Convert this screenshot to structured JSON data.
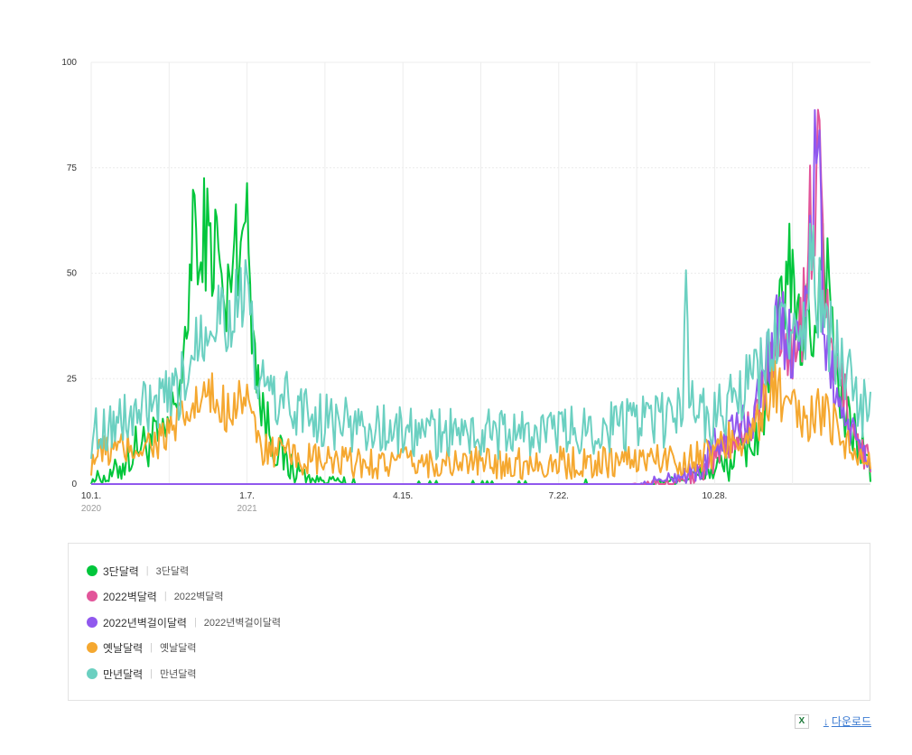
{
  "chart_data": {
    "type": "line",
    "x_ticks": [
      {
        "label": "10.1.",
        "sub": "2020",
        "day": 0
      },
      {
        "label": "1.7.",
        "sub": "2021",
        "day": 98
      },
      {
        "label": "4.15.",
        "sub": "",
        "day": 196
      },
      {
        "label": "7.22.",
        "sub": "",
        "day": 294
      },
      {
        "label": "10.28.",
        "sub": "",
        "day": 392
      }
    ],
    "x_range": [
      0,
      490
    ],
    "ylim": [
      0,
      100
    ],
    "y_ticks": [
      0,
      25,
      50,
      75,
      100
    ],
    "grid": true,
    "series": [
      {
        "name": "3단달력",
        "alias": "3단달력",
        "color": "#00c63b",
        "keys": [
          [
            0,
            0
          ],
          [
            5,
            2
          ],
          [
            10,
            1
          ],
          [
            15,
            3
          ],
          [
            20,
            5
          ],
          [
            25,
            7
          ],
          [
            30,
            10
          ],
          [
            35,
            9
          ],
          [
            40,
            11
          ],
          [
            45,
            10
          ],
          [
            50,
            15
          ],
          [
            55,
            24
          ],
          [
            60,
            30
          ],
          [
            63,
            60
          ],
          [
            65,
            68
          ],
          [
            68,
            40
          ],
          [
            70,
            63
          ],
          [
            73,
            58
          ],
          [
            76,
            55
          ],
          [
            80,
            58
          ],
          [
            82,
            45
          ],
          [
            85,
            38
          ],
          [
            88,
            55
          ],
          [
            90,
            58
          ],
          [
            93,
            60
          ],
          [
            95,
            62
          ],
          [
            96,
            50
          ],
          [
            98,
            74
          ],
          [
            100,
            45
          ],
          [
            103,
            35
          ],
          [
            106,
            20
          ],
          [
            110,
            15
          ],
          [
            115,
            10
          ],
          [
            120,
            6
          ],
          [
            125,
            4
          ],
          [
            130,
            3
          ],
          [
            135,
            2
          ],
          [
            140,
            1
          ],
          [
            150,
            1
          ],
          [
            160,
            0.5
          ],
          [
            180,
            0.3
          ],
          [
            200,
            0.2
          ],
          [
            230,
            0.3
          ],
          [
            260,
            0.2
          ],
          [
            290,
            0.3
          ],
          [
            320,
            0.4
          ],
          [
            350,
            0.5
          ],
          [
            370,
            1
          ],
          [
            380,
            2
          ],
          [
            390,
            3
          ],
          [
            400,
            5
          ],
          [
            410,
            8
          ],
          [
            420,
            12
          ],
          [
            425,
            20
          ],
          [
            430,
            30
          ],
          [
            435,
            45
          ],
          [
            438,
            55
          ],
          [
            442,
            40
          ],
          [
            446,
            35
          ],
          [
            450,
            40
          ],
          [
            454,
            35
          ],
          [
            458,
            50
          ],
          [
            460,
            58
          ],
          [
            463,
            50
          ],
          [
            466,
            40
          ],
          [
            470,
            20
          ],
          [
            475,
            15
          ],
          [
            480,
            12
          ],
          [
            485,
            8
          ],
          [
            490,
            3
          ]
        ],
        "noise": 4
      },
      {
        "name": "2022벽달력",
        "alias": "2022벽달력",
        "color": "#e2559a",
        "keys": [
          [
            0,
            0
          ],
          [
            340,
            0
          ],
          [
            365,
            0.5
          ],
          [
            380,
            2
          ],
          [
            390,
            4
          ],
          [
            395,
            8
          ],
          [
            400,
            10
          ],
          [
            410,
            12
          ],
          [
            415,
            15
          ],
          [
            420,
            20
          ],
          [
            425,
            25
          ],
          [
            430,
            30
          ],
          [
            435,
            40
          ],
          [
            440,
            30
          ],
          [
            445,
            35
          ],
          [
            450,
            45
          ],
          [
            452,
            62
          ],
          [
            455,
            50
          ],
          [
            458,
            100
          ],
          [
            460,
            60
          ],
          [
            462,
            40
          ],
          [
            465,
            30
          ],
          [
            470,
            25
          ],
          [
            475,
            20
          ],
          [
            480,
            12
          ],
          [
            485,
            8
          ],
          [
            490,
            5
          ]
        ],
        "noise": 3
      },
      {
        "name": "2022년벽걸이달력",
        "alias": "2022년벽걸이달력",
        "color": "#9058ee",
        "keys": [
          [
            0,
            0
          ],
          [
            345,
            0
          ],
          [
            360,
            1
          ],
          [
            370,
            2
          ],
          [
            380,
            3
          ],
          [
            385,
            4
          ],
          [
            390,
            8
          ],
          [
            395,
            10
          ],
          [
            400,
            12
          ],
          [
            410,
            14
          ],
          [
            415,
            16
          ],
          [
            420,
            20
          ],
          [
            425,
            30
          ],
          [
            430,
            35
          ],
          [
            435,
            38
          ],
          [
            440,
            32
          ],
          [
            445,
            38
          ],
          [
            450,
            45
          ],
          [
            452,
            55
          ],
          [
            456,
            85
          ],
          [
            458,
            70
          ],
          [
            460,
            40
          ],
          [
            463,
            30
          ],
          [
            466,
            25
          ],
          [
            470,
            20
          ],
          [
            475,
            15
          ],
          [
            480,
            10
          ],
          [
            485,
            8
          ],
          [
            490,
            6
          ]
        ],
        "noise": 3
      },
      {
        "name": "옛날달력",
        "alias": "옛날달력",
        "color": "#f5a830",
        "keys": [
          [
            0,
            6
          ],
          [
            10,
            8
          ],
          [
            20,
            8
          ],
          [
            30,
            9
          ],
          [
            40,
            10
          ],
          [
            50,
            12
          ],
          [
            55,
            14
          ],
          [
            60,
            16
          ],
          [
            65,
            18
          ],
          [
            70,
            20
          ],
          [
            75,
            20
          ],
          [
            80,
            19
          ],
          [
            85,
            18
          ],
          [
            90,
            20
          ],
          [
            95,
            22
          ],
          [
            100,
            20
          ],
          [
            102,
            12
          ],
          [
            105,
            10
          ],
          [
            110,
            8
          ],
          [
            120,
            7
          ],
          [
            130,
            6
          ],
          [
            150,
            5
          ],
          [
            170,
            5
          ],
          [
            200,
            5
          ],
          [
            230,
            5
          ],
          [
            260,
            5
          ],
          [
            290,
            5
          ],
          [
            320,
            5
          ],
          [
            340,
            6
          ],
          [
            360,
            6
          ],
          [
            375,
            6
          ],
          [
            385,
            7
          ],
          [
            395,
            8
          ],
          [
            400,
            10
          ],
          [
            410,
            12
          ],
          [
            420,
            14
          ],
          [
            425,
            20
          ],
          [
            430,
            25
          ],
          [
            435,
            18
          ],
          [
            440,
            17
          ],
          [
            445,
            16
          ],
          [
            450,
            15
          ],
          [
            455,
            17
          ],
          [
            460,
            16
          ],
          [
            465,
            15
          ],
          [
            470,
            14
          ],
          [
            475,
            10
          ],
          [
            480,
            8
          ],
          [
            485,
            6
          ],
          [
            490,
            4
          ]
        ],
        "noise": 3
      },
      {
        "name": "만년달력",
        "alias": "만년달력",
        "color": "#6bd0c1",
        "keys": [
          [
            0,
            12
          ],
          [
            10,
            14
          ],
          [
            20,
            15
          ],
          [
            30,
            17
          ],
          [
            40,
            18
          ],
          [
            50,
            20
          ],
          [
            55,
            22
          ],
          [
            60,
            25
          ],
          [
            65,
            35
          ],
          [
            70,
            38
          ],
          [
            75,
            40
          ],
          [
            80,
            42
          ],
          [
            85,
            40
          ],
          [
            90,
            42
          ],
          [
            95,
            45
          ],
          [
            100,
            40
          ],
          [
            102,
            28
          ],
          [
            105,
            25
          ],
          [
            110,
            22
          ],
          [
            120,
            20
          ],
          [
            130,
            18
          ],
          [
            140,
            16
          ],
          [
            160,
            14
          ],
          [
            180,
            13
          ],
          [
            200,
            12
          ],
          [
            230,
            12
          ],
          [
            260,
            12
          ],
          [
            290,
            12
          ],
          [
            310,
            13
          ],
          [
            330,
            14
          ],
          [
            350,
            15
          ],
          [
            365,
            15
          ],
          [
            372,
            18
          ],
          [
            374,
            45
          ],
          [
            376,
            25
          ],
          [
            380,
            18
          ],
          [
            390,
            16
          ],
          [
            400,
            18
          ],
          [
            410,
            22
          ],
          [
            420,
            25
          ],
          [
            425,
            30
          ],
          [
            430,
            35
          ],
          [
            435,
            38
          ],
          [
            440,
            35
          ],
          [
            445,
            30
          ],
          [
            450,
            40
          ],
          [
            452,
            55
          ],
          [
            456,
            45
          ],
          [
            460,
            40
          ],
          [
            465,
            35
          ],
          [
            470,
            30
          ],
          [
            475,
            25
          ],
          [
            480,
            22
          ],
          [
            485,
            18
          ],
          [
            490,
            16
          ]
        ],
        "noise": 4
      }
    ]
  },
  "legend": [
    {
      "name": "3단달력",
      "sub": "3단달력",
      "color": "#00c63b"
    },
    {
      "name": "2022벽달력",
      "sub": "2022벽달력",
      "color": "#e2559a"
    },
    {
      "name": "2022년벽걸이달력",
      "sub": "2022년벽걸이달력",
      "color": "#9058ee"
    },
    {
      "name": "옛날달력",
      "sub": "옛날달력",
      "color": "#f5a830"
    },
    {
      "name": "만년달력",
      "sub": "만년달력",
      "color": "#6bd0c1"
    }
  ],
  "toolbar": {
    "excel_label": "X",
    "download_label": "다운로드",
    "download_icon": "↓"
  }
}
